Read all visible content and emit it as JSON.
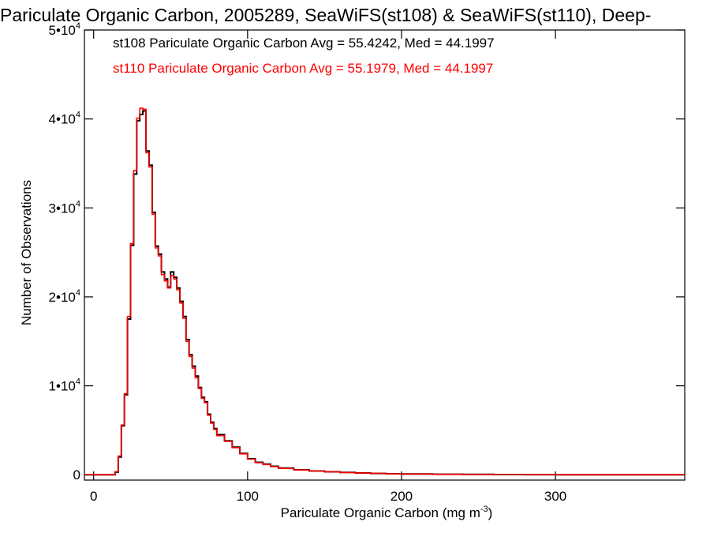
{
  "chart_data": {
    "type": "line",
    "title": "Pariculate Organic Carbon, 2005289, SeaWiFS(st108) & SeaWiFS(st110), Deep-",
    "xlabel": "Pariculate Organic Carbon (mg m",
    "xlabel_sup": "-3",
    "xlabel_suffix": ")",
    "ylabel": "Number of Observations",
    "xlim": [
      -6,
      384
    ],
    "ylim": [
      -600,
      50000
    ],
    "grid": false,
    "x_ticks": [
      {
        "value": 0,
        "label": "0"
      },
      {
        "value": 100,
        "label": "100"
      },
      {
        "value": 200,
        "label": "200"
      },
      {
        "value": 300,
        "label": "300"
      }
    ],
    "y_ticks": [
      {
        "value": 0,
        "base": "0",
        "exp": ""
      },
      {
        "value": 10000,
        "base": "1•10",
        "exp": "4"
      },
      {
        "value": 20000,
        "base": "2•10",
        "exp": "4"
      },
      {
        "value": 30000,
        "base": "3•10",
        "exp": "4"
      },
      {
        "value": 40000,
        "base": "4•10",
        "exp": "4"
      },
      {
        "value": 50000,
        "base": "5•10",
        "exp": "4"
      }
    ],
    "annotations": [
      {
        "text": "st108 Pariculate Organic Carbon Avg = 55.4242, Med = 44.1997",
        "color": "#000000"
      },
      {
        "text": "st110 Pariculate Organic Carbon Avg = 55.1979, Med = 44.1997",
        "color": "#ff0000"
      }
    ],
    "series": [
      {
        "name": "st108",
        "color": "#000000",
        "x": [
          -6,
          10,
          12,
          14,
          16,
          18,
          20,
          22,
          24,
          26,
          28,
          30,
          32,
          34,
          36,
          38,
          40,
          42,
          44,
          46,
          48,
          50,
          52,
          54,
          56,
          58,
          60,
          62,
          64,
          66,
          68,
          70,
          72,
          74,
          76,
          78,
          80,
          85,
          90,
          95,
          100,
          105,
          110,
          115,
          120,
          130,
          140,
          150,
          160,
          170,
          180,
          190,
          200,
          220,
          240,
          260,
          280,
          300,
          330,
          360,
          384
        ],
        "values": [
          0,
          0,
          0,
          300,
          2000,
          5500,
          9000,
          17500,
          25800,
          33800,
          39800,
          40500,
          40900,
          36400,
          34800,
          29500,
          25700,
          24800,
          22800,
          22000,
          21100,
          22800,
          22200,
          21000,
          19500,
          17800,
          15200,
          13500,
          12200,
          11100,
          9800,
          8700,
          8200,
          6800,
          5900,
          5200,
          4500,
          3800,
          3100,
          2400,
          1800,
          1400,
          1200,
          950,
          750,
          550,
          420,
          330,
          260,
          200,
          150,
          110,
          80,
          55,
          35,
          22,
          14,
          8,
          4,
          2,
          0
        ]
      },
      {
        "name": "st110",
        "color": "#ff0000",
        "x": [
          -6,
          10,
          12,
          14,
          16,
          18,
          20,
          22,
          24,
          26,
          28,
          30,
          32,
          34,
          36,
          38,
          40,
          42,
          44,
          46,
          48,
          50,
          52,
          54,
          56,
          58,
          60,
          62,
          64,
          66,
          68,
          70,
          72,
          74,
          76,
          78,
          80,
          85,
          90,
          95,
          100,
          105,
          110,
          115,
          120,
          130,
          140,
          150,
          160,
          170,
          180,
          190,
          200,
          220,
          240,
          260,
          280,
          300,
          330,
          360,
          384
        ],
        "values": [
          0,
          0,
          0,
          350,
          2100,
          5600,
          9100,
          17800,
          26000,
          34200,
          40100,
          41200,
          41100,
          36200,
          34600,
          29300,
          25500,
          24600,
          22500,
          21800,
          21000,
          22400,
          22000,
          20800,
          19300,
          17600,
          15000,
          13300,
          12000,
          10900,
          9700,
          8600,
          8100,
          6700,
          5800,
          5100,
          4400,
          3750,
          3050,
          2350,
          1750,
          1350,
          1150,
          920,
          720,
          540,
          410,
          320,
          250,
          190,
          145,
          105,
          78,
          52,
          34,
          21,
          13,
          7,
          4,
          2,
          0
        ]
      }
    ]
  }
}
